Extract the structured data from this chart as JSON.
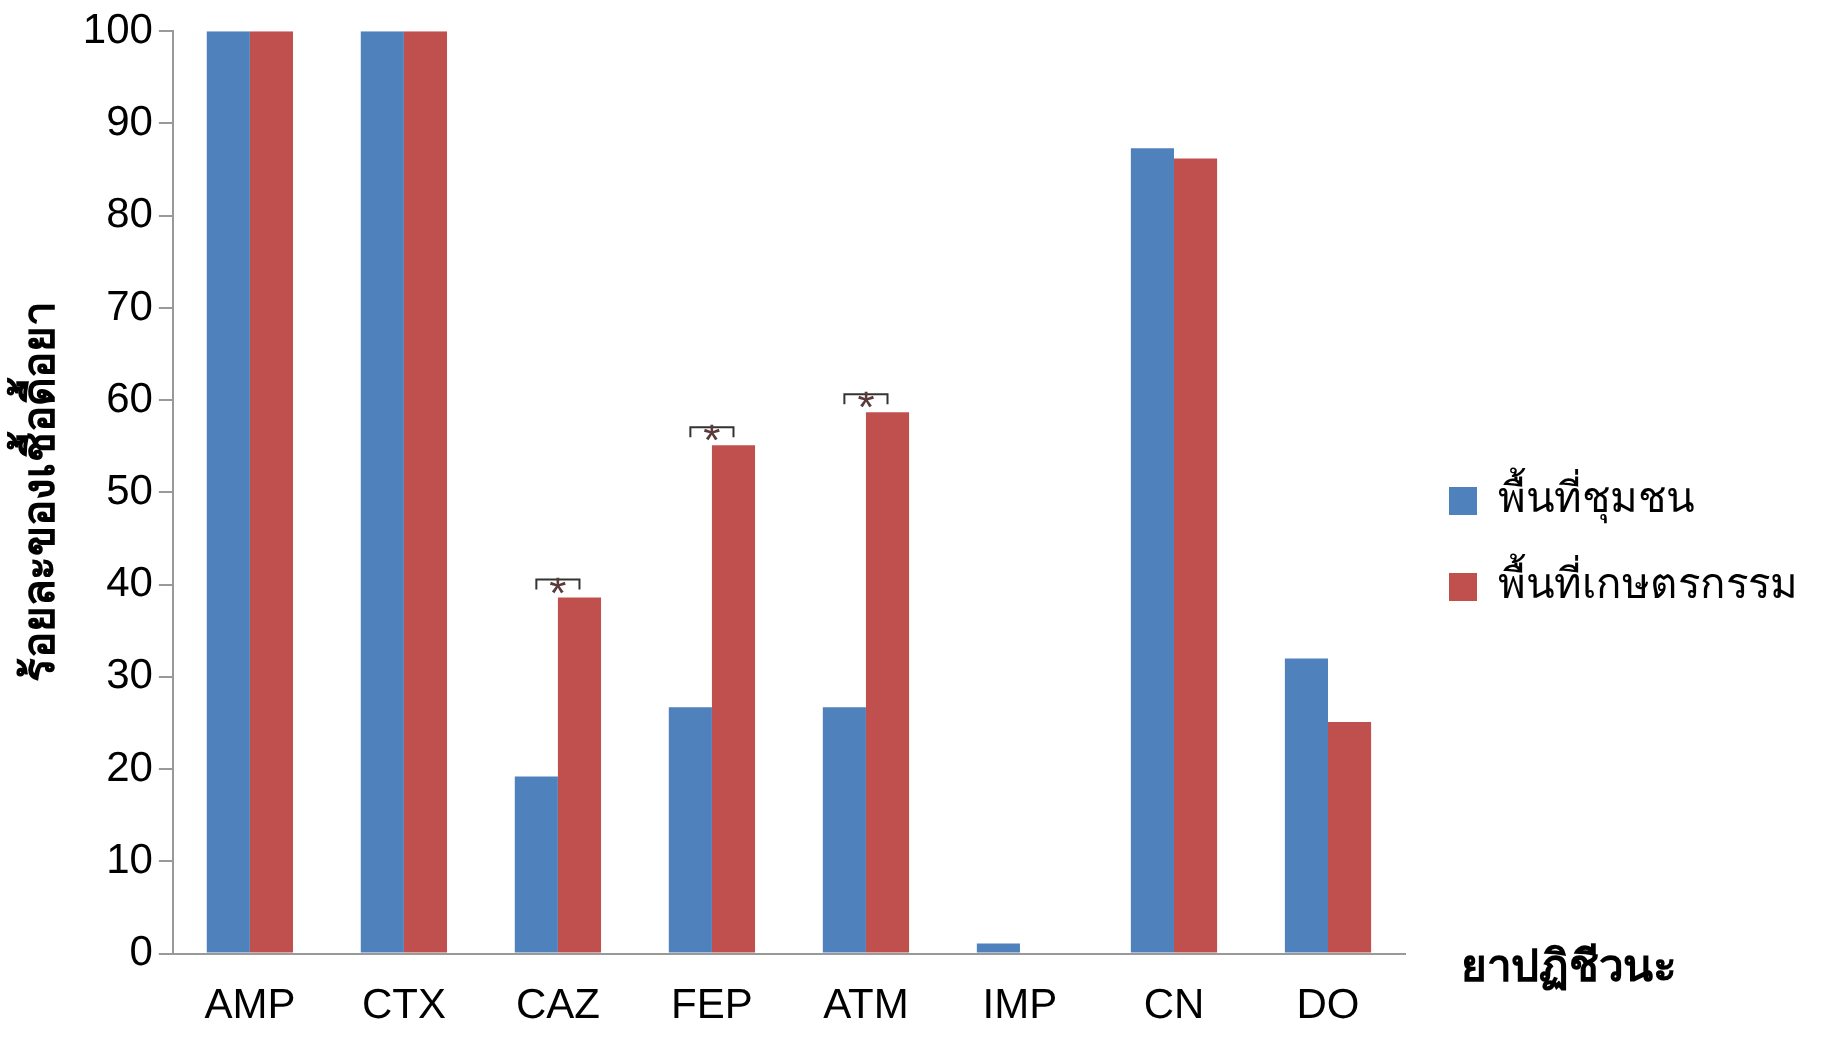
{
  "chart_data": {
    "type": "bar",
    "categories": [
      "AMP",
      "CTX",
      "CAZ",
      "FEP",
      "ATM",
      "IMP",
      "CN",
      "DO"
    ],
    "series": [
      {
        "name": "พื้นที่ชุมชน",
        "color": "#4f81bd",
        "values": [
          100,
          100,
          19.2,
          26.7,
          26.7,
          1.1,
          87.3,
          32.0
        ]
      },
      {
        "name": "พื้นที่เกษตรกรรม",
        "color": "#c0504d",
        "values": [
          100,
          100,
          38.6,
          55.1,
          58.7,
          0,
          86.2,
          25.1
        ]
      }
    ],
    "xlabel": "ยาปฏิชีวนะ",
    "ylabel": "ร้อยละของเชื้อดื้อยา",
    "ylim": [
      0,
      100
    ],
    "yticks": [
      0,
      10,
      20,
      30,
      40,
      50,
      60,
      70,
      80,
      90,
      100
    ],
    "grid": false,
    "legend": "right",
    "annotations": [
      {
        "text": "*",
        "x": "CAZ",
        "y": 38.6
      },
      {
        "text": "*",
        "x": "FEP",
        "y": 55.1
      },
      {
        "text": "*",
        "x": "ATM",
        "y": 58.7
      }
    ]
  }
}
